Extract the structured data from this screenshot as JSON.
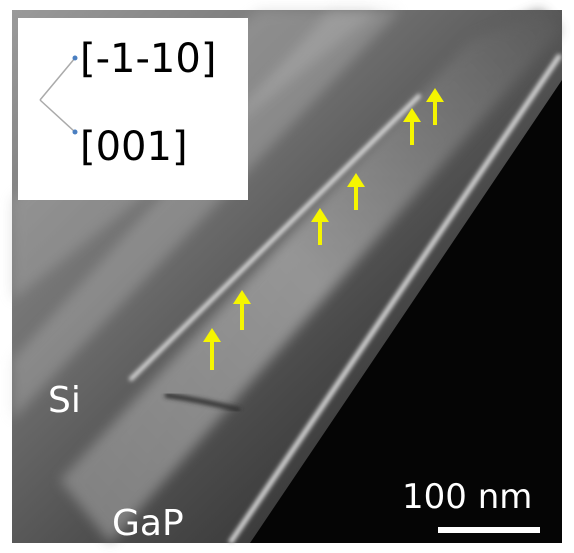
{
  "inset": {
    "direction_1": "[-1-10]",
    "direction_2": "[001]"
  },
  "regions": {
    "upper": "Si",
    "lower": "GaP"
  },
  "scale_bar": {
    "label": "100 nm"
  }
}
